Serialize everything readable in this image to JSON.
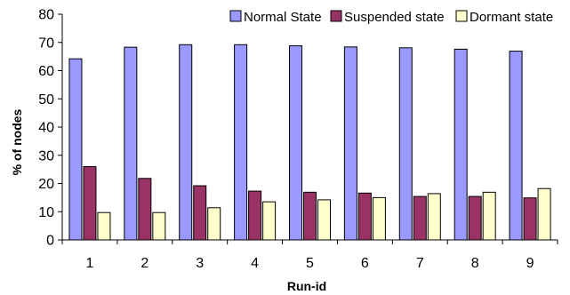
{
  "chart_data": {
    "type": "bar",
    "categories": [
      "1",
      "2",
      "3",
      "4",
      "5",
      "6",
      "7",
      "8",
      "9"
    ],
    "series": [
      {
        "name": "Normal State",
        "color": "#9999ff",
        "values": [
          64.2,
          68.3,
          69.2,
          69.2,
          68.8,
          68.4,
          68.1,
          67.6,
          66.9
        ]
      },
      {
        "name": "Suspended state",
        "color": "#993366",
        "values": [
          26.0,
          21.8,
          19.2,
          17.3,
          16.9,
          16.6,
          15.4,
          15.4,
          14.9
        ]
      },
      {
        "name": "Dormant state",
        "color": "#ffffcc",
        "values": [
          9.7,
          9.7,
          11.4,
          13.5,
          14.2,
          15.0,
          16.4,
          16.9,
          18.2
        ]
      }
    ],
    "xlabel": "Run-id",
    "ylabel": "% of nodes",
    "ylim": [
      0,
      80
    ],
    "yticks": [
      0,
      10,
      20,
      30,
      40,
      50,
      60,
      70,
      80
    ],
    "grid": false,
    "legend_position": "top-right"
  }
}
